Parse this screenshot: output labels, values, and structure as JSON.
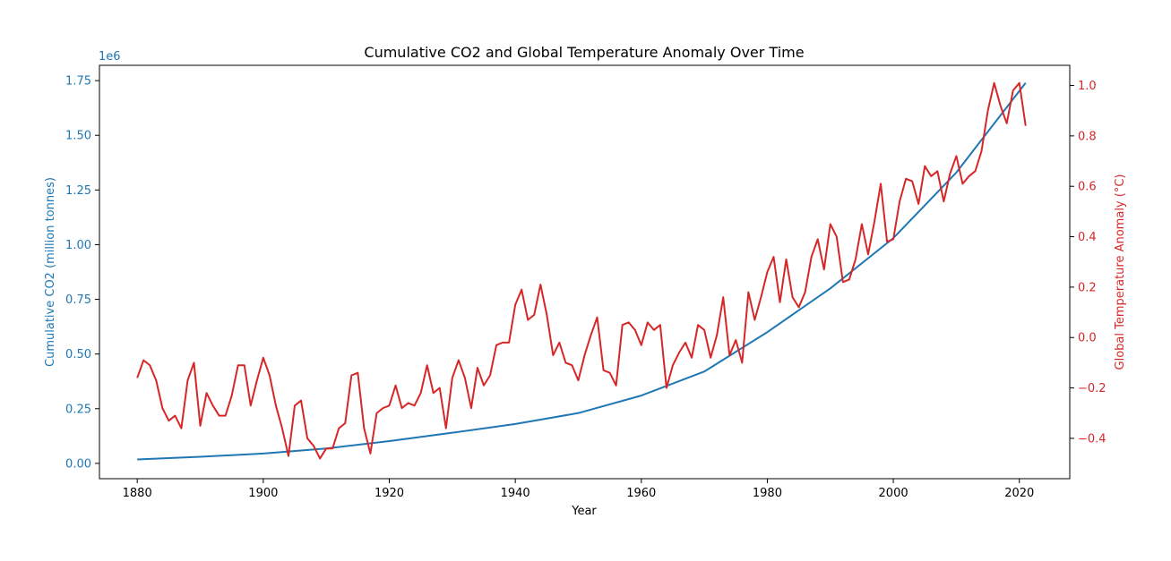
{
  "chart_data": {
    "type": "line",
    "title": "Cumulative CO2 and Global Temperature Anomaly Over Time",
    "xlabel": "Year",
    "xlim": [
      1874,
      2028
    ],
    "x_ticks": [
      1880,
      1900,
      1920,
      1940,
      1960,
      1980,
      2000,
      2020
    ],
    "grid": false,
    "axes": {
      "left": {
        "label": "Cumulative CO2 (million tonnes)",
        "offset_label": "1e6",
        "color": "#1f77b4",
        "ylim": [
          -0.07,
          1.82
        ],
        "ticks": [
          0.0,
          0.25,
          0.5,
          0.75,
          1.0,
          1.25,
          1.5,
          1.75
        ],
        "tick_labels": [
          "0.00",
          "0.25",
          "0.50",
          "0.75",
          "1.00",
          "1.25",
          "1.50",
          "1.75"
        ]
      },
      "right": {
        "label": "Global Temperature Anomaly (°C)",
        "color": "#d62728",
        "ylim": [
          -0.56,
          1.08
        ],
        "ticks": [
          -0.4,
          -0.2,
          0.0,
          0.2,
          0.4,
          0.6,
          0.8,
          1.0
        ],
        "tick_labels": [
          "−0.4",
          "−0.2",
          "0.0",
          "0.2",
          "0.4",
          "0.6",
          "0.8",
          "1.0"
        ]
      }
    },
    "series": [
      {
        "axis": "left",
        "color": "#1f77b4",
        "x": [
          1880,
          1890,
          1900,
          1910,
          1920,
          1930,
          1940,
          1950,
          1960,
          1970,
          1980,
          1990,
          2000,
          2010,
          2021
        ],
        "values": [
          0.018,
          0.03,
          0.045,
          0.068,
          0.102,
          0.14,
          0.18,
          0.23,
          0.31,
          0.42,
          0.6,
          0.8,
          1.03,
          1.33,
          1.74
        ]
      },
      {
        "axis": "right",
        "color": "#d62728",
        "x_start": 1880,
        "x_step": 1,
        "values": [
          -0.16,
          -0.09,
          -0.11,
          -0.17,
          -0.28,
          -0.33,
          -0.31,
          -0.36,
          -0.17,
          -0.1,
          -0.35,
          -0.22,
          -0.27,
          -0.31,
          -0.31,
          -0.23,
          -0.11,
          -0.11,
          -0.27,
          -0.17,
          -0.08,
          -0.15,
          -0.27,
          -0.36,
          -0.47,
          -0.27,
          -0.25,
          -0.4,
          -0.43,
          -0.48,
          -0.44,
          -0.44,
          -0.36,
          -0.34,
          -0.15,
          -0.14,
          -0.36,
          -0.46,
          -0.3,
          -0.28,
          -0.27,
          -0.19,
          -0.28,
          -0.26,
          -0.27,
          -0.22,
          -0.11,
          -0.22,
          -0.2,
          -0.36,
          -0.16,
          -0.09,
          -0.16,
          -0.28,
          -0.12,
          -0.19,
          -0.15,
          -0.03,
          -0.02,
          -0.02,
          0.13,
          0.19,
          0.07,
          0.09,
          0.21,
          0.09,
          -0.07,
          -0.02,
          -0.1,
          -0.11,
          -0.17,
          -0.07,
          0.01,
          0.08,
          -0.13,
          -0.14,
          -0.19,
          0.05,
          0.06,
          0.03,
          -0.03,
          0.06,
          0.03,
          0.05,
          -0.2,
          -0.11,
          -0.06,
          -0.02,
          -0.08,
          0.05,
          0.03,
          -0.08,
          0.01,
          0.16,
          -0.07,
          -0.01,
          -0.1,
          0.18,
          0.07,
          0.16,
          0.26,
          0.32,
          0.14,
          0.31,
          0.16,
          0.12,
          0.18,
          0.32,
          0.39,
          0.27,
          0.45,
          0.4,
          0.22,
          0.23,
          0.31,
          0.45,
          0.33,
          0.46,
          0.61,
          0.38,
          0.39,
          0.54,
          0.63,
          0.62,
          0.53,
          0.68,
          0.64,
          0.66,
          0.54,
          0.65,
          0.72,
          0.61,
          0.64,
          0.66,
          0.74,
          0.9,
          1.01,
          0.92,
          0.85,
          0.98,
          1.01,
          0.84
        ]
      }
    ]
  }
}
